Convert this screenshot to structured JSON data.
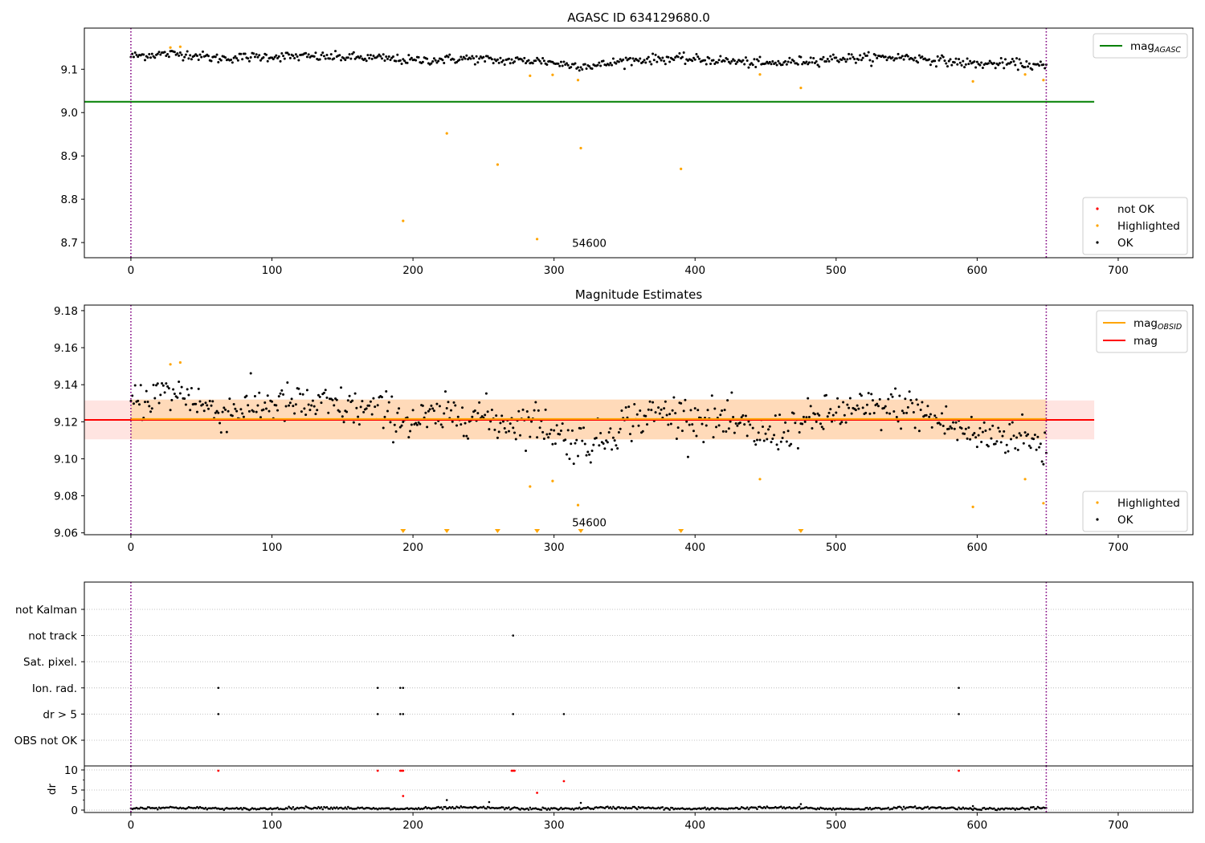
{
  "colors": {
    "ok": "#000000",
    "highlighted": "#ffa500",
    "not_ok": "#ff0000",
    "mag_agasc": "#008000",
    "mag_obsid": "#ffa500",
    "mag": "#ff0000",
    "band_obsid": "#ffdab9",
    "band_mag": "#ffe4e1",
    "vline": "#800080",
    "grid": "#b0b0b0"
  },
  "chart_data": [
    {
      "type": "scatter",
      "title": "AGASC ID 634129680.0",
      "xlim": [
        -33,
        753
      ],
      "ylim": [
        8.665,
        9.195
      ],
      "xticks": [
        0,
        100,
        200,
        300,
        400,
        500,
        600,
        700
      ],
      "yticks": [
        8.7,
        8.8,
        8.9,
        9.0,
        9.1
      ],
      "ytick_labels": [
        "8.7",
        "8.8",
        "8.9",
        "9.0",
        "9.1"
      ],
      "annotation": {
        "text": "54600",
        "x": 325,
        "y": 8.69
      },
      "vlines": [
        0,
        649
      ],
      "hline": {
        "y": 9.025,
        "x0": -33,
        "x1": 683,
        "label": "mag",
        "sub": "AGASC"
      },
      "legend_line": [
        {
          "label": "mag",
          "sub": "AGASC",
          "color": "#008000"
        }
      ],
      "legend_points": [
        {
          "label": "not OK",
          "color": "#ff0000"
        },
        {
          "label": "Highlighted",
          "color": "#ffa500"
        },
        {
          "label": "OK",
          "color": "#000000"
        }
      ],
      "ok_trend": {
        "n": 650,
        "x0": 0,
        "x1": 649,
        "knots_x": [
          0,
          20,
          40,
          60,
          100,
          150,
          180,
          200,
          240,
          260,
          290,
          310,
          330,
          350,
          380,
          420,
          450,
          500,
          550,
          580,
          600,
          630,
          649
        ],
        "knots_y": [
          9.13,
          9.135,
          9.135,
          9.125,
          9.13,
          9.128,
          9.125,
          9.12,
          9.125,
          9.12,
          9.12,
          9.11,
          9.108,
          9.12,
          9.125,
          9.12,
          9.112,
          9.125,
          9.128,
          9.118,
          9.112,
          9.113,
          9.105
        ],
        "noise": 0.0055
      },
      "highlighted": [
        [
          28,
          9.15
        ],
        [
          35,
          9.152
        ],
        [
          193,
          8.75
        ],
        [
          224,
          8.952
        ],
        [
          260,
          8.88
        ],
        [
          283,
          9.085
        ],
        [
          288,
          8.708
        ],
        [
          299,
          9.087
        ],
        [
          317,
          9.075
        ],
        [
          319,
          8.918
        ],
        [
          390,
          8.87
        ],
        [
          446,
          9.088
        ],
        [
          475,
          9.057
        ],
        [
          597,
          9.072
        ],
        [
          634,
          9.088
        ],
        [
          647,
          9.075
        ]
      ],
      "not_ok": []
    },
    {
      "type": "scatter",
      "title": "Magnitude Estimates",
      "xlim": [
        -33,
        753
      ],
      "ylim": [
        9.059,
        9.183
      ],
      "xticks": [
        0,
        100,
        200,
        300,
        400,
        500,
        600,
        700
      ],
      "yticks": [
        9.06,
        9.08,
        9.1,
        9.12,
        9.14,
        9.16,
        9.18
      ],
      "ytick_labels": [
        "9.06",
        "9.08",
        "9.10",
        "9.12",
        "9.14",
        "9.16",
        "9.18"
      ],
      "annotation": {
        "text": "54600",
        "x": 325,
        "y": 9.0635
      },
      "vlines": [
        0,
        649
      ],
      "mag": {
        "value": 9.121,
        "band": [
          9.1105,
          9.1315
        ],
        "x0": -33,
        "x1": 683
      },
      "mag_obsid": {
        "value": 9.1215,
        "band": [
          9.1105,
          9.132
        ],
        "x0": 0,
        "x1": 649
      },
      "legend_line": [
        {
          "label": "mag",
          "sub": "OBSID",
          "color": "#ffa500"
        },
        {
          "label": "mag",
          "sub": "",
          "color": "#ff0000"
        }
      ],
      "legend_points": [
        {
          "label": "Highlighted",
          "color": "#ffa500"
        },
        {
          "label": "OK",
          "color": "#000000"
        }
      ],
      "ok_trend": {
        "n": 650,
        "x0": 0,
        "x1": 649,
        "knots_x": [
          0,
          20,
          40,
          60,
          100,
          150,
          180,
          200,
          240,
          260,
          290,
          310,
          330,
          350,
          380,
          420,
          450,
          500,
          550,
          580,
          600,
          630,
          649
        ],
        "knots_y": [
          9.13,
          9.135,
          9.135,
          9.125,
          9.13,
          9.128,
          9.125,
          9.12,
          9.125,
          9.12,
          9.12,
          9.11,
          9.108,
          9.12,
          9.125,
          9.12,
          9.112,
          9.125,
          9.128,
          9.118,
          9.112,
          9.113,
          9.105
        ],
        "noise": 0.0055
      },
      "highlighted": [
        [
          28,
          9.151
        ],
        [
          35,
          9.152
        ],
        [
          283,
          9.085
        ],
        [
          299,
          9.088
        ],
        [
          317,
          9.075
        ],
        [
          446,
          9.089
        ],
        [
          597,
          9.074
        ],
        [
          634,
          9.089
        ],
        [
          647,
          9.076
        ]
      ],
      "offscale_low": [
        193,
        224,
        260,
        288,
        319,
        390,
        475
      ]
    },
    {
      "type": "scatter",
      "title": "",
      "xlim": [
        -33,
        753
      ],
      "vlines": [
        0,
        649
      ],
      "flag_rows": [
        "not Kalman",
        "not track",
        "Sat. pixel.",
        "Ion. rad.",
        "dr > 5",
        "OBS not OK"
      ],
      "flag_points": [
        {
          "row": "not track",
          "x": [
            271
          ]
        },
        {
          "row": "Ion. rad.",
          "x": [
            62,
            175,
            191,
            193,
            587
          ]
        },
        {
          "row": "dr > 5",
          "x": [
            62,
            175,
            191,
            193,
            271,
            307,
            587
          ]
        }
      ]
    },
    {
      "type": "scatter",
      "ylabel": "dr",
      "xlim": [
        -33,
        753
      ],
      "ylim": [
        -0.6,
        11.0
      ],
      "xticks": [
        0,
        100,
        200,
        300,
        400,
        500,
        600,
        700
      ],
      "yticks": [
        0,
        5,
        10
      ],
      "ytick_labels": [
        "0",
        "5",
        "10"
      ],
      "vlines": [
        0,
        649
      ],
      "dr_base": {
        "n": 650,
        "x0": 0,
        "x1": 649,
        "mean": 0.45,
        "noise": 0.25
      },
      "red_points": [
        [
          62,
          9.8
        ],
        [
          175,
          9.8
        ],
        [
          191,
          9.8
        ],
        [
          192,
          9.8
        ],
        [
          193,
          9.8
        ],
        [
          270,
          9.8
        ],
        [
          271,
          9.8
        ],
        [
          272,
          9.8
        ],
        [
          307,
          7.2
        ],
        [
          288,
          4.3
        ],
        [
          193,
          3.5
        ],
        [
          587,
          9.8
        ]
      ],
      "black_points": [
        [
          224,
          2.5
        ],
        [
          254,
          2.0
        ],
        [
          319,
          1.8
        ],
        [
          475,
          1.5
        ],
        [
          597,
          1.0
        ]
      ]
    }
  ]
}
